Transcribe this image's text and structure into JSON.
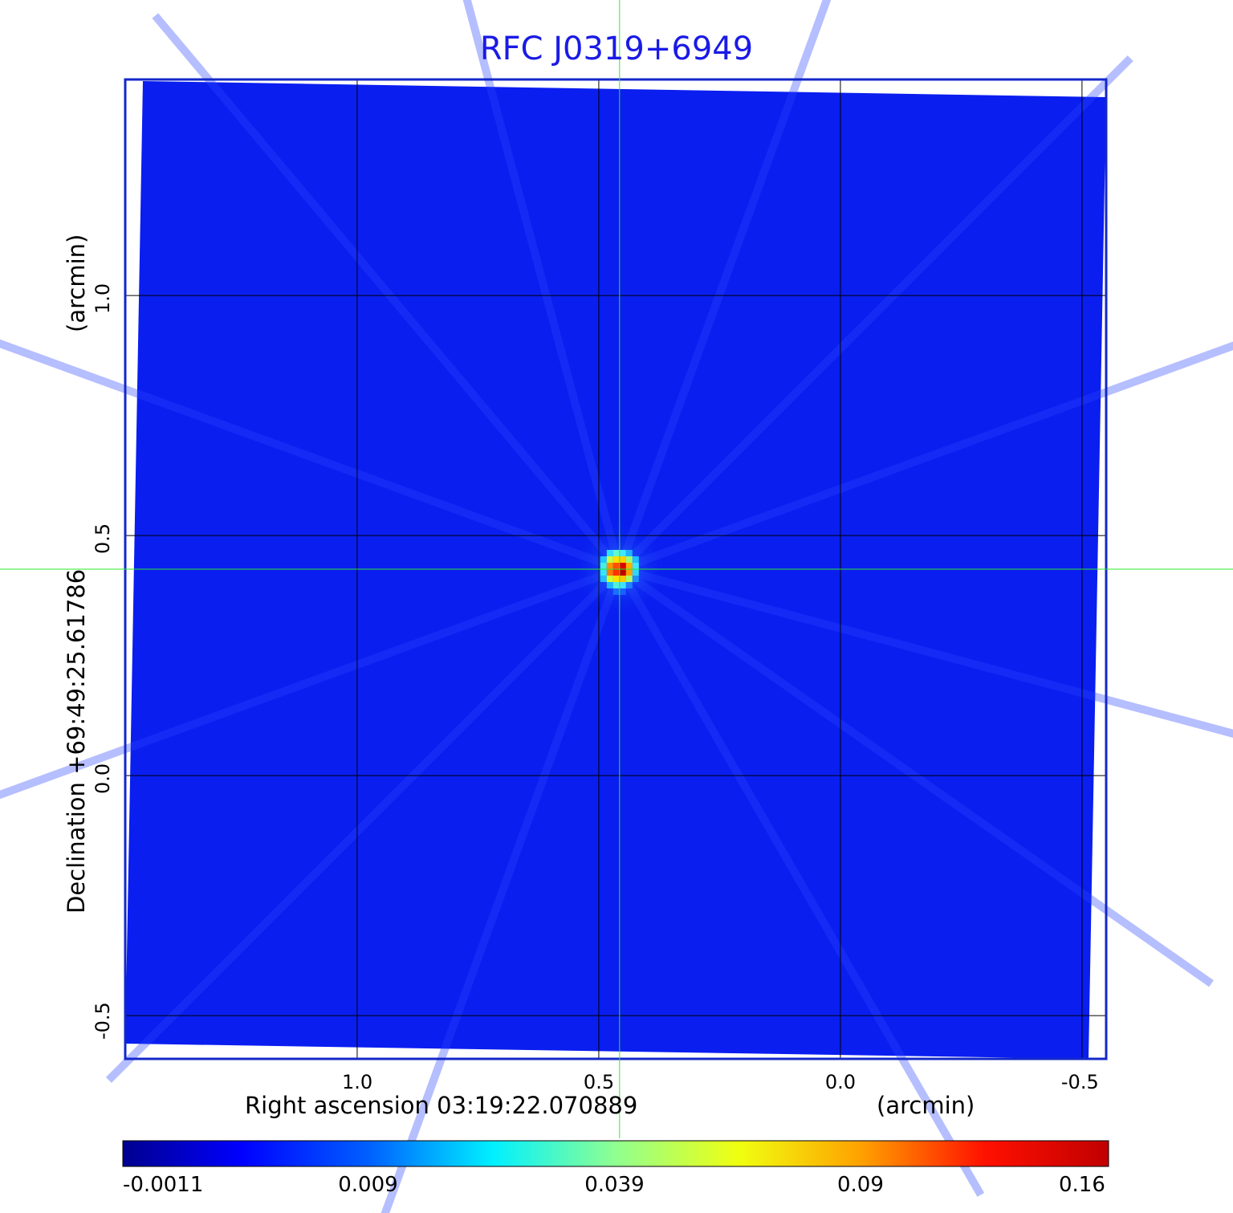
{
  "chart_data": {
    "type": "heatmap",
    "title": "RFC J0319+6949",
    "xlabel": "Right ascension  03:19:22.070889",
    "xunit": "(arcmin)",
    "ylabel": "Declination  +69:49:25.61786",
    "yunit": "(arcmin)",
    "x_ticks": [
      "1.0",
      "0.5",
      "0.0",
      "-0.5"
    ],
    "x_tick_values": [
      1.0,
      0.5,
      0.0,
      -0.5
    ],
    "y_ticks": [
      "1.0",
      "0.5",
      "0.0",
      "-0.5"
    ],
    "y_tick_values": [
      1.0,
      0.5,
      0.0,
      -0.5
    ],
    "xlim": [
      1.48,
      -0.55
    ],
    "ylim": [
      -0.59,
      1.45
    ],
    "grid": true,
    "crosshair": {
      "x": 0.457,
      "y": 0.43
    },
    "source_peak": {
      "x": 0.457,
      "y": 0.43,
      "value": 0.16
    },
    "colorbar": {
      "ticks": [
        "-0.0011",
        "0.009",
        "0.039",
        "0.09",
        "0.16"
      ],
      "values": [
        -0.0011,
        0.009,
        0.039,
        0.09,
        0.16
      ],
      "colormap": "jet",
      "placement": "bottom"
    },
    "colors": {
      "background_field": "#0a1ef0",
      "frame": "#1428c8",
      "title": "#1a1ae6",
      "crosshair": "#2ee82e",
      "grid": "#000000"
    }
  }
}
